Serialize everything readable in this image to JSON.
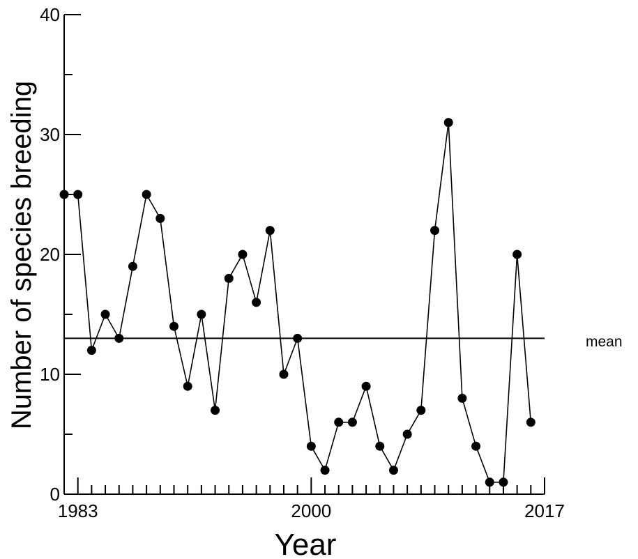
{
  "chart_data": {
    "type": "line",
    "title": "",
    "xlabel": "Year",
    "ylabel": "Number of species breeding",
    "xlim": [
      1982,
      2017
    ],
    "ylim": [
      0,
      40
    ],
    "x_tick_labels": [
      1983,
      2000,
      2017
    ],
    "y_tick_labels": [
      0,
      10,
      20,
      30,
      40
    ],
    "x_minor_tick_step": 1,
    "y_major_tick_step": 10,
    "y_minor_tick_step": 5,
    "grid": false,
    "mean": {
      "label": "mean",
      "value": 13
    },
    "series": [
      {
        "x": [
          1982,
          1983,
          1984,
          1985,
          1986,
          1987,
          1988,
          1989,
          1990,
          1991,
          1992,
          1993,
          1994,
          1995,
          1996,
          1997,
          1998,
          1999,
          2000,
          2001,
          2002,
          2003,
          2004,
          2005,
          2006,
          2007,
          2008,
          2009,
          2010,
          2011,
          2012,
          2013,
          2014,
          2015,
          2016,
          2017
        ],
        "y": [
          25,
          25,
          12,
          15,
          13,
          19,
          25,
          23,
          14,
          9,
          15,
          7,
          18,
          20,
          16,
          22,
          10,
          13,
          4,
          2,
          6,
          6,
          9,
          4,
          2,
          5,
          7,
          22,
          31,
          8,
          4,
          1,
          1,
          20,
          6,
          null
        ]
      }
    ]
  }
}
